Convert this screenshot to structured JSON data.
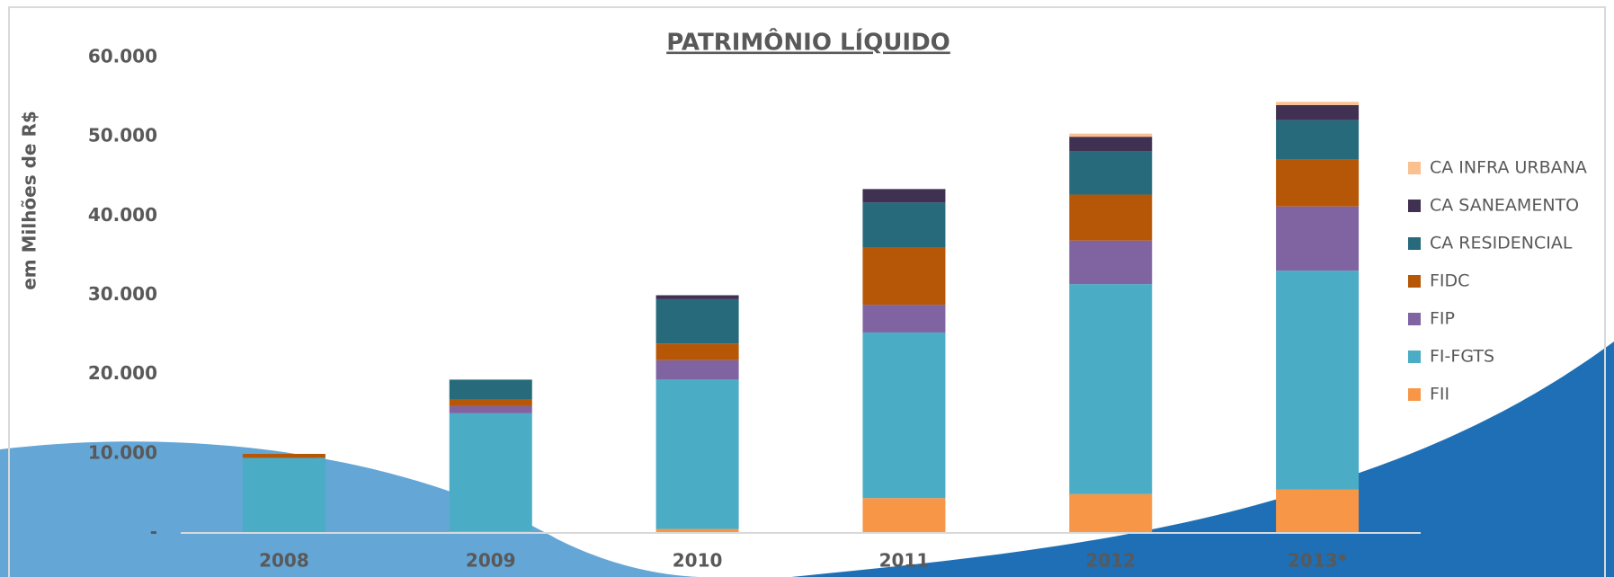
{
  "chart_data": {
    "type": "stacked_bar",
    "title": "PATRIMÔNIO LÍQUIDO",
    "y_label": "em Milhões de R$",
    "categories": [
      "2008",
      "2009",
      "2010",
      "2011",
      "2012",
      "2013*"
    ],
    "series": [
      {
        "name": "FII",
        "color": "#f79646",
        "values": [
          0,
          200,
          500,
          4400,
          4900,
          5500
        ]
      },
      {
        "name": "FI-FGTS",
        "color": "#4bacc6",
        "values": [
          9480,
          14900,
          18850,
          20900,
          26500,
          27600
        ]
      },
      {
        "name": "FIP",
        "color": "#8064a2",
        "values": [
          0,
          900,
          2450,
          3500,
          5500,
          8100
        ]
      },
      {
        "name": "FIDC",
        "color": "#b65708",
        "values": [
          500,
          900,
          2100,
          7200,
          5800,
          5900
        ]
      },
      {
        "name": "CA RESIDENCIAL",
        "color": "#276a7c",
        "values": [
          0,
          2450,
          5600,
          5700,
          5500,
          5000
        ]
      },
      {
        "name": "CA SANEAMENTO",
        "color": "#403152",
        "values": [
          0,
          0,
          500,
          1700,
          1800,
          1900
        ]
      },
      {
        "name": "CA INFRA URBANA",
        "color": "#fac08f",
        "values": [
          0,
          0,
          0,
          0,
          400,
          400
        ]
      }
    ],
    "ylim": [
      0,
      60000
    ],
    "yticks": [
      {
        "value": 0,
        "label": "-"
      },
      {
        "value": 10000,
        "label": "10.000"
      },
      {
        "value": 20000,
        "label": "20.000"
      },
      {
        "value": 30000,
        "label": "30.000"
      },
      {
        "value": 40000,
        "label": "40.000"
      },
      {
        "value": 50000,
        "label": "50.000"
      },
      {
        "value": 60000,
        "label": "60.000"
      }
    ],
    "legend": "right"
  }
}
